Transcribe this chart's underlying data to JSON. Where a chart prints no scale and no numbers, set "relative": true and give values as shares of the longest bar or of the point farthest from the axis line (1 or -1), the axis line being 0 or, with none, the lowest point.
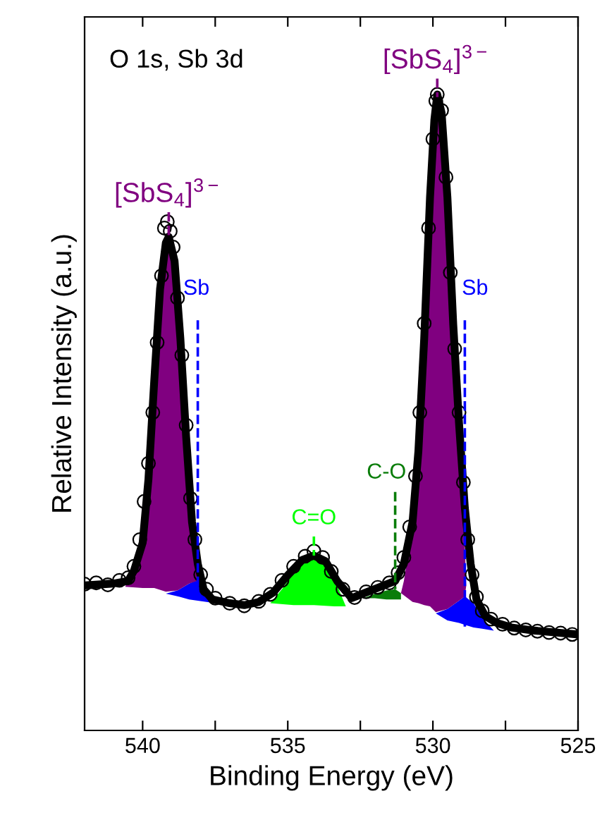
{
  "chart_data": {
    "type": "line",
    "title": "O 1s, Sb 3d",
    "xlabel": "Binding Energy (eV)",
    "ylabel": "Relative Intensity (a.u.)",
    "relative": true,
    "tick_labels": "x",
    "xlim": [
      542,
      525
    ],
    "xticks": [
      540,
      {
        "value": 537.5,
        "label": null
      },
      535,
      {
        "value": 532.5,
        "label": null
      },
      530,
      {
        "value": 527.5,
        "label": null
      },
      525
    ],
    "series": [
      {
        "type": "area",
        "name": "Sb",
        "color": "#0000ff",
        "x": [
          539.2,
          538.8,
          538.4,
          538.1,
          537.8,
          537.5,
          537.8,
          538.1,
          538.4,
          538.8
        ],
        "values": [
          0.215,
          0.22,
          0.231,
          0.237,
          0.217,
          0.2,
          0.202,
          0.204,
          0.206,
          0.211
        ]
      },
      {
        "type": "area",
        "name": "[SbS$_{4}$]$^{3−}$",
        "color": "#800080",
        "x": [
          540.6,
          540.2,
          540.0,
          539.8,
          539.6,
          539.4,
          539.2,
          539.1,
          538.9,
          538.7,
          538.5,
          538.3,
          538.1,
          538.0,
          538.4,
          538.8,
          539.2,
          539.6,
          540.0
        ],
        "values": [
          0.226,
          0.262,
          0.295,
          0.395,
          0.55,
          0.694,
          0.767,
          0.776,
          0.738,
          0.616,
          0.461,
          0.328,
          0.251,
          0.237,
          0.231,
          0.22,
          0.218,
          0.224,
          0.224
        ]
      },
      {
        "type": "area",
        "name": "C=O",
        "color": "#00ff00",
        "x": [
          535.6,
          535.2,
          534.8,
          534.4,
          534.1,
          533.8,
          533.4,
          533.0,
          533.4,
          534.1,
          534.8
        ],
        "values": [
          0.2,
          0.222,
          0.248,
          0.268,
          0.275,
          0.266,
          0.239,
          0.195,
          0.195,
          0.197,
          0.197
        ]
      },
      {
        "type": "area",
        "name": "C-O",
        "color": "#0a7d0a",
        "x": [
          532.4,
          532.0,
          531.6,
          531.3,
          531.1,
          531.1,
          531.6,
          532.0
        ],
        "values": [
          0.208,
          0.215,
          0.22,
          0.222,
          0.216,
          0.206,
          0.206,
          0.208
        ]
      },
      {
        "type": "area",
        "name": "Sb",
        "color": "#0000ff",
        "x": [
          529.9,
          529.5,
          529.1,
          528.9,
          528.6,
          528.3,
          527.9,
          528.3,
          528.6,
          528.9,
          529.1,
          529.5
        ],
        "values": [
          0.184,
          0.191,
          0.204,
          0.211,
          0.2,
          0.177,
          0.157,
          0.16,
          0.162,
          0.166,
          0.169,
          0.173
        ]
      },
      {
        "type": "area",
        "name": "[SbS$_{4}$]$^{3−}$",
        "color": "#800080",
        "x": [
          531.1,
          531.0,
          530.7,
          530.5,
          530.3,
          530.1,
          529.95,
          529.85,
          529.7,
          529.5,
          529.3,
          529.1,
          528.95,
          528.85,
          528.9,
          529.1,
          529.5,
          529.9,
          530.1,
          530.3,
          530.5,
          530.7
        ],
        "values": [
          0.216,
          0.235,
          0.324,
          0.435,
          0.612,
          0.834,
          0.956,
          0.996,
          0.967,
          0.834,
          0.634,
          0.472,
          0.35,
          0.228,
          0.211,
          0.204,
          0.191,
          0.186,
          0.195,
          0.197,
          0.2,
          0.202
        ]
      },
      {
        "color": "#000000",
        "x": [
          542.0,
          541.0,
          540.5,
          540.3,
          540.0,
          539.8,
          539.6,
          539.4,
          539.2,
          539.1,
          538.9,
          538.7,
          538.5,
          538.3,
          538.1,
          537.9,
          537.6,
          537.0,
          536.5,
          536.0,
          535.5,
          535.0,
          534.5,
          534.1,
          533.7,
          533.3,
          532.8,
          532.3,
          531.8,
          531.3,
          531.0,
          530.7,
          530.5,
          530.3,
          530.1,
          529.95,
          529.85,
          529.7,
          529.5,
          529.3,
          529.1,
          528.9,
          528.7,
          528.5,
          528.2,
          527.8,
          527.3,
          526.5,
          525.0
        ],
        "values": [
          0.228,
          0.231,
          0.235,
          0.251,
          0.295,
          0.395,
          0.55,
          0.694,
          0.767,
          0.776,
          0.738,
          0.616,
          0.461,
          0.328,
          0.262,
          0.222,
          0.206,
          0.2,
          0.197,
          0.202,
          0.217,
          0.244,
          0.268,
          0.275,
          0.266,
          0.235,
          0.208,
          0.217,
          0.226,
          0.235,
          0.262,
          0.328,
          0.439,
          0.616,
          0.838,
          0.96,
          1,
          0.971,
          0.838,
          0.639,
          0.483,
          0.35,
          0.262,
          0.206,
          0.18,
          0.169,
          0.162,
          0.157,
          0.151
        ]
      },
      {
        "type": "scatter",
        "marker": "circle",
        "color": "#000000",
        "x": [
          542.0,
          541.6,
          541.2,
          540.8,
          540.5,
          540.3,
          540.1,
          539.95,
          539.8,
          539.65,
          539.5,
          539.35,
          539.25,
          539.15,
          539.05,
          538.95,
          538.8,
          538.65,
          538.5,
          538.35,
          538.2,
          538.0,
          537.8,
          537.5,
          537.0,
          536.5,
          536.0,
          535.6,
          535.2,
          534.8,
          534.4,
          534.1,
          533.8,
          533.5,
          533.1,
          532.7,
          532.3,
          531.9,
          531.5,
          531.2,
          531.0,
          530.8,
          530.6,
          530.45,
          530.3,
          530.15,
          530.0,
          529.9,
          529.85,
          529.7,
          529.55,
          529.4,
          529.25,
          529.1,
          528.95,
          528.8,
          528.65,
          528.5,
          528.3,
          528.0,
          527.6,
          527.2,
          526.8,
          526.4,
          526.0,
          525.6,
          525.2
        ],
        "values": [
          0.23,
          0.232,
          0.229,
          0.236,
          0.24,
          0.258,
          0.3,
          0.36,
          0.42,
          0.5,
          0.61,
          0.715,
          0.79,
          0.8,
          0.785,
          0.76,
          0.68,
          0.59,
          0.48,
          0.365,
          0.3,
          0.245,
          0.222,
          0.208,
          0.2,
          0.196,
          0.203,
          0.214,
          0.236,
          0.258,
          0.274,
          0.282,
          0.272,
          0.25,
          0.222,
          0.209,
          0.218,
          0.225,
          0.232,
          0.248,
          0.272,
          0.32,
          0.4,
          0.5,
          0.64,
          0.79,
          0.93,
          0.99,
          1,
          0.975,
          0.87,
          0.72,
          0.6,
          0.5,
          0.39,
          0.3,
          0.245,
          0.21,
          0.188,
          0.175,
          0.167,
          0.161,
          0.158,
          0.156,
          0.154,
          0.153,
          0.151
        ]
      }
    ]
  }
}
